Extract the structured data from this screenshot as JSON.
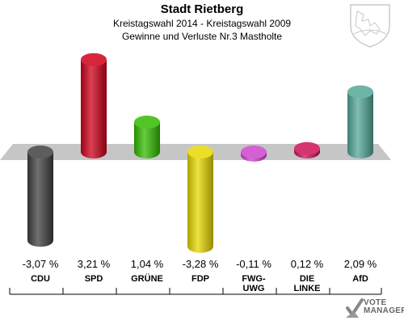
{
  "chart_data": {
    "type": "bar",
    "title": "Stadt Rietberg",
    "subtitle_1": "Kreistagswahl 2014 - Kreistagswahl 2009",
    "subtitle_2": "Gewinne und Verluste Nr.3 Mastholte",
    "categories": [
      "CDU",
      "SPD",
      "GRÜNE",
      "FDP",
      "FWG-UWG",
      "DIE LINKE",
      "AfD"
    ],
    "category_lines": [
      [
        "CDU"
      ],
      [
        "SPD"
      ],
      [
        "GRÜNE"
      ],
      [
        "FDP"
      ],
      [
        "FWG-",
        "UWG"
      ],
      [
        "DIE",
        "LINKE"
      ],
      [
        "AfD"
      ]
    ],
    "values": [
      -3.07,
      3.21,
      1.04,
      -3.28,
      -0.11,
      0.12,
      2.09
    ],
    "value_labels": [
      "-3,07 %",
      "3,21 %",
      "1,04 %",
      "-3,28 %",
      "-0,11 %",
      "0,12 %",
      "2,09 %"
    ],
    "colors": [
      "#404040",
      "#d0001a",
      "#33bb00",
      "#e8d800",
      "#cc44cc",
      "#cc1155",
      "#55a898"
    ],
    "unit": "%",
    "baseline": 0,
    "grid": false,
    "legend": "none"
  },
  "branding": {
    "logo_text_1": "VOTE",
    "logo_text_2": "MANAGER",
    "crest_icon": "coat-of-arms-icon"
  }
}
